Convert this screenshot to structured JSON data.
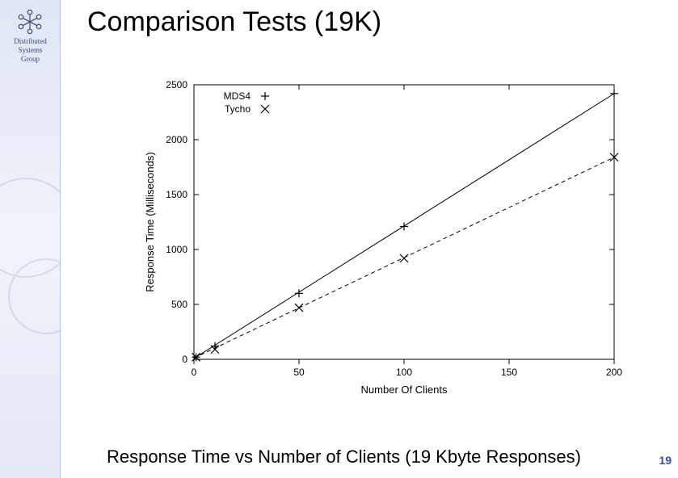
{
  "sidebar": {
    "group_line1": "Distributed",
    "group_line2": "Systems",
    "group_line3": "Group",
    "logo_color": "#3a4a7a"
  },
  "title": "Comparison Tests (19K)",
  "caption": "Response Time vs Number of Clients (19 Kbyte Responses)",
  "page_number": "19",
  "chart": {
    "type": "scatter-line",
    "axis_font_size": 12,
    "label_font_size": 13,
    "line_width": 1,
    "background_color": "#ffffff",
    "axis_color": "#000000",
    "xlabel": "Number Of Clients",
    "ylabel": "Response Time (Milliseconds)",
    "xlim": [
      0,
      200
    ],
    "ylim": [
      0,
      2500
    ],
    "xticks": [
      0,
      50,
      100,
      150,
      200
    ],
    "yticks": [
      0,
      500,
      1000,
      1500,
      2000,
      2500
    ],
    "legend": {
      "position": "top-left",
      "entries": [
        {
          "label": "MDS4",
          "marker": "plus"
        },
        {
          "label": "Tycho",
          "marker": "cross"
        }
      ]
    },
    "series": [
      {
        "name": "MDS4",
        "marker": "plus",
        "marker_size": 5,
        "line_style": "solid",
        "color": "#000000",
        "points": [
          {
            "x": 1,
            "y": 20
          },
          {
            "x": 10,
            "y": 120
          },
          {
            "x": 50,
            "y": 600
          },
          {
            "x": 100,
            "y": 1210
          },
          {
            "x": 200,
            "y": 2420
          }
        ]
      },
      {
        "name": "Tycho",
        "marker": "cross",
        "marker_size": 5,
        "line_style": "dashed",
        "color": "#000000",
        "points": [
          {
            "x": 1,
            "y": 20
          },
          {
            "x": 10,
            "y": 90
          },
          {
            "x": 50,
            "y": 470
          },
          {
            "x": 100,
            "y": 920
          },
          {
            "x": 200,
            "y": 1840
          }
        ]
      }
    ]
  }
}
